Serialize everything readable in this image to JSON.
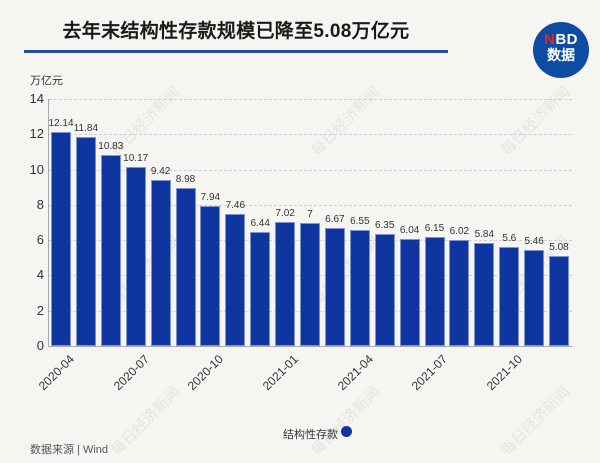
{
  "header": {
    "title": "去年末结构性存款规模已降至5.08万亿元",
    "logo_top": "BD",
    "logo_top_accent": "N",
    "logo_bottom": "数据"
  },
  "watermark_text": "每日经济新闻",
  "colors": {
    "bar": "#0f35a0",
    "title_rule": "#1f4e9c",
    "logo_bg": "#0e4ba3",
    "logo_accent": "#e3262a",
    "background": "#f7f5f1"
  },
  "chart_data": {
    "type": "bar",
    "title": "去年末结构性存款规模已降至5.08万亿元",
    "xlabel": "",
    "ylabel": "万亿元",
    "ylim": [
      0,
      14
    ],
    "yticks": [
      0,
      2,
      4,
      6,
      8,
      10,
      12,
      14
    ],
    "grid": true,
    "legend_position": "bottom",
    "categories": [
      "2020-04",
      "2020-05",
      "2020-06",
      "2020-07",
      "2020-08",
      "2020-09",
      "2020-10",
      "2020-11",
      "2020-12",
      "2021-01",
      "2021-02",
      "2021-03",
      "2021-04",
      "2021-05",
      "2021-06",
      "2021-07",
      "2021-08",
      "2021-09",
      "2021-10",
      "2021-11",
      "2021-12"
    ],
    "xtick_labels": [
      "2020-04",
      "2020-07",
      "2020-10",
      "2021-01",
      "2021-04",
      "2021-07",
      "2021-10"
    ],
    "series": [
      {
        "name": "结构性存款",
        "values": [
          12.14,
          11.84,
          10.83,
          10.17,
          9.42,
          8.98,
          7.94,
          7.46,
          6.44,
          7.02,
          7,
          6.67,
          6.55,
          6.35,
          6.04,
          6.15,
          6.02,
          5.84,
          5.6,
          5.46,
          5.08
        ]
      }
    ],
    "value_labels": [
      "12.14",
      "11.84",
      "10.83",
      "10.17",
      "9.42",
      "8.98",
      "7.94",
      "7.46",
      "6.44",
      "7.02",
      "7",
      "6.67",
      "6.55",
      "6.35",
      "6.04",
      "6.15",
      "6.02",
      "5.84",
      "5.6",
      "5.46",
      "5.08"
    ]
  },
  "legend": {
    "label": "结构性存款"
  },
  "footer": {
    "source": "数据来源 | Wind"
  }
}
